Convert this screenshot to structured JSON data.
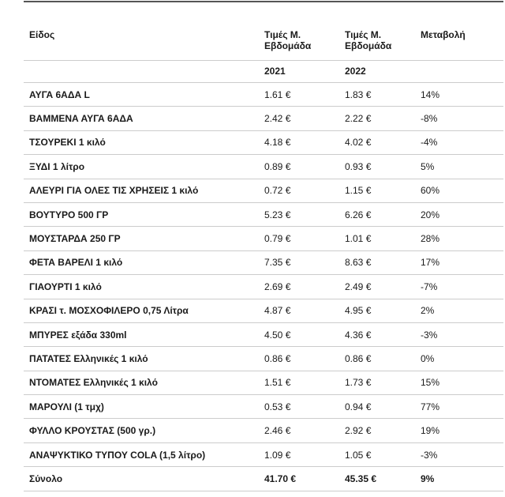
{
  "colors": {
    "text": "#1a1a1a",
    "row_border": "#cccccc",
    "top_border": "#555555",
    "background": "#ffffff"
  },
  "table": {
    "columns": [
      "Είδος",
      "Τιμές Μ. Εβδομάδα",
      "Τιμές Μ. Εβδομάδα",
      "Μεταβολή"
    ],
    "year_row": [
      "2021",
      "2022"
    ],
    "rows": [
      {
        "item": "ΑΥΓΑ 6ΑΔΑ L",
        "y2021": "1.61 €",
        "y2022": "1.83 €",
        "change": "14%"
      },
      {
        "item": "ΒΑΜΜΕΝΑ ΑΥΓΑ 6ΑΔΑ",
        "y2021": "2.42 €",
        "y2022": "2.22 €",
        "change": "-8%"
      },
      {
        "item": "ΤΣΟΥΡΕΚΙ 1 κιλό",
        "y2021": "4.18 €",
        "y2022": "4.02 €",
        "change": "-4%"
      },
      {
        "item": "ΞΥΔΙ 1 λίτρο",
        "y2021": "0.89 €",
        "y2022": "0.93 €",
        "change": "5%"
      },
      {
        "item": "ΑΛΕΥΡΙ ΓΙΑ ΟΛΕΣ ΤΙΣ ΧΡΗΣΕΙΣ 1 κιλό",
        "y2021": "0.72 €",
        "y2022": "1.15 €",
        "change": "60%"
      },
      {
        "item": "ΒΟΥΤΥΡΟ 500 ΓΡ",
        "y2021": "5.23 €",
        "y2022": "6.26 €",
        "change": "20%"
      },
      {
        "item": "ΜΟΥΣΤΑΡΔΑ 250 ΓΡ",
        "y2021": "0.79 €",
        "y2022": "1.01 €",
        "change": "28%"
      },
      {
        "item": "ΦΕΤΑ ΒΑΡΕΛΙ 1 κιλό",
        "y2021": "7.35 €",
        "y2022": "8.63 €",
        "change": "17%"
      },
      {
        "item": "ΓΙΑΟΥΡΤΙ 1 κιλό",
        "y2021": "2.69 €",
        "y2022": "2.49 €",
        "change": "-7%"
      },
      {
        "item": "ΚΡΑΣΙ τ. ΜΟΣΧΟΦΙΛΕΡΟ 0,75 Λίτρα",
        "y2021": "4.87 €",
        "y2022": "4.95 €",
        "change": "2%"
      },
      {
        "item": "ΜΠΥΡΕΣ εξάδα 330ml",
        "y2021": "4.50 €",
        "y2022": "4.36 €",
        "change": "-3%"
      },
      {
        "item": "ΠΑΤΑΤΕΣ Ελληνικές 1 κιλό",
        "y2021": "0.86 €",
        "y2022": "0.86 €",
        "change": "0%"
      },
      {
        "item": "ΝΤΟΜΑΤΕΣ Ελληνικές 1 κιλό",
        "y2021": "1.51 €",
        "y2022": "1.73 €",
        "change": "15%"
      },
      {
        "item": "ΜΑΡΟΥΛΙ (1 τμχ)",
        "y2021": "0.53 €",
        "y2022": "0.94 €",
        "change": "77%"
      },
      {
        "item": "ΦΥΛΛΟ ΚΡΟΥΣΤΑΣ (500 γρ.)",
        "y2021": "2.46 €",
        "y2022": "2.92 €",
        "change": "19%"
      },
      {
        "item": "ΑΝΑΨΥΚΤΙΚΟ ΤΥΠΟΥ COLA (1,5 λίτρο)",
        "y2021": "1.09 €",
        "y2022": "1.05 €",
        "change": "-3%"
      }
    ],
    "total": {
      "item": "Σύνολο",
      "y2021": "41.70 €",
      "y2022": "45.35 €",
      "change": "9%"
    }
  },
  "chart_data": {
    "type": "table",
    "title": "",
    "columns": [
      "Είδος",
      "Τιμές Μ. Εβδομάδα 2021",
      "Τιμές Μ. Εβδομάδα 2022",
      "Μεταβολή"
    ],
    "rows": [
      [
        "ΑΥΓΑ 6ΑΔΑ L",
        1.61,
        1.83,
        "14%"
      ],
      [
        "ΒΑΜΜΕΝΑ ΑΥΓΑ 6ΑΔΑ",
        2.42,
        2.22,
        "-8%"
      ],
      [
        "ΤΣΟΥΡΕΚΙ 1 κιλό",
        4.18,
        4.02,
        "-4%"
      ],
      [
        "ΞΥΔΙ 1 λίτρο",
        0.89,
        0.93,
        "5%"
      ],
      [
        "ΑΛΕΥΡΙ ΓΙΑ ΟΛΕΣ ΤΙΣ ΧΡΗΣΕΙΣ 1 κιλό",
        0.72,
        1.15,
        "60%"
      ],
      [
        "ΒΟΥΤΥΡΟ 500 ΓΡ",
        5.23,
        6.26,
        "20%"
      ],
      [
        "ΜΟΥΣΤΑΡΔΑ 250 ΓΡ",
        0.79,
        1.01,
        "28%"
      ],
      [
        "ΦΕΤΑ ΒΑΡΕΛΙ 1 κιλό",
        7.35,
        8.63,
        "17%"
      ],
      [
        "ΓΙΑΟΥΡΤΙ 1 κιλό",
        2.69,
        2.49,
        "-7%"
      ],
      [
        "ΚΡΑΣΙ τ. ΜΟΣΧΟΦΙΛΕΡΟ 0,75 Λίτρα",
        4.87,
        4.95,
        "2%"
      ],
      [
        "ΜΠΥΡΕΣ εξάδα 330ml",
        4.5,
        4.36,
        "-3%"
      ],
      [
        "ΠΑΤΑΤΕΣ Ελληνικές 1 κιλό",
        0.86,
        0.86,
        "0%"
      ],
      [
        "ΝΤΟΜΑΤΕΣ Ελληνικές 1 κιλό",
        1.51,
        1.73,
        "15%"
      ],
      [
        "ΜΑΡΟΥΛΙ (1 τμχ)",
        0.53,
        0.94,
        "77%"
      ],
      [
        "ΦΥΛΛΟ ΚΡΟΥΣΤΑΣ (500 γρ.)",
        2.46,
        2.92,
        "19%"
      ],
      [
        "ΑΝΑΨΥΚΤΙΚΟ ΤΥΠΟΥ COLA (1,5 λίτρο)",
        1.09,
        1.05,
        "-3%"
      ]
    ],
    "total_row": [
      "Σύνολο",
      41.7,
      45.35,
      "9%"
    ],
    "units": {
      "prices": "€",
      "change": "%"
    }
  }
}
